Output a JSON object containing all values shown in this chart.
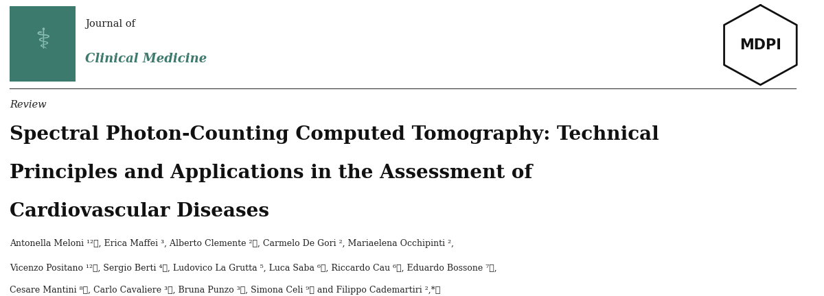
{
  "bg_color": "#ffffff",
  "header_box_color": "#3d7a6e",
  "header_line_color": "#444444",
  "journal_of_text": "Journal of",
  "journal_name_text": "Clinical Medicine",
  "journal_name_color": "#3d7a6e",
  "review_text": "Review",
  "title_line1": "Spectral Photon-Counting Computed Tomography: Technical",
  "title_line2": "Principles and Applications in the Assessment of",
  "title_line3": "Cardiovascular Diseases",
  "authors_line1": "Antonella Meloni ¹²ⓓ, Erica Maffei ³, Alberto Clemente ²ⓓ, Carmelo De Gori ², Mariaelena Occhipinti ²,",
  "authors_line2": "Vicenzo Positano ¹²ⓓ, Sergio Berti ⁴ⓓ, Ludovico La Grutta ⁵, Luca Saba ⁶ⓓ, Riccardo Cau ⁶ⓓ, Eduardo Bossone ⁷ⓓ,",
  "authors_line3": "Cesare Mantini ⁸ⓓ, Carlo Cavaliere ³ⓓ, Bruna Punzo ³ⓓ, Simona Celi ⁹ⓓ and Filippo Cademartiri ²,*ⓓ",
  "orcid_color": "#a8c84a",
  "text_color": "#222222",
  "title_color": "#111111",
  "mdpi_color": "#111111",
  "stethoscope_color": "#8bbdb6"
}
